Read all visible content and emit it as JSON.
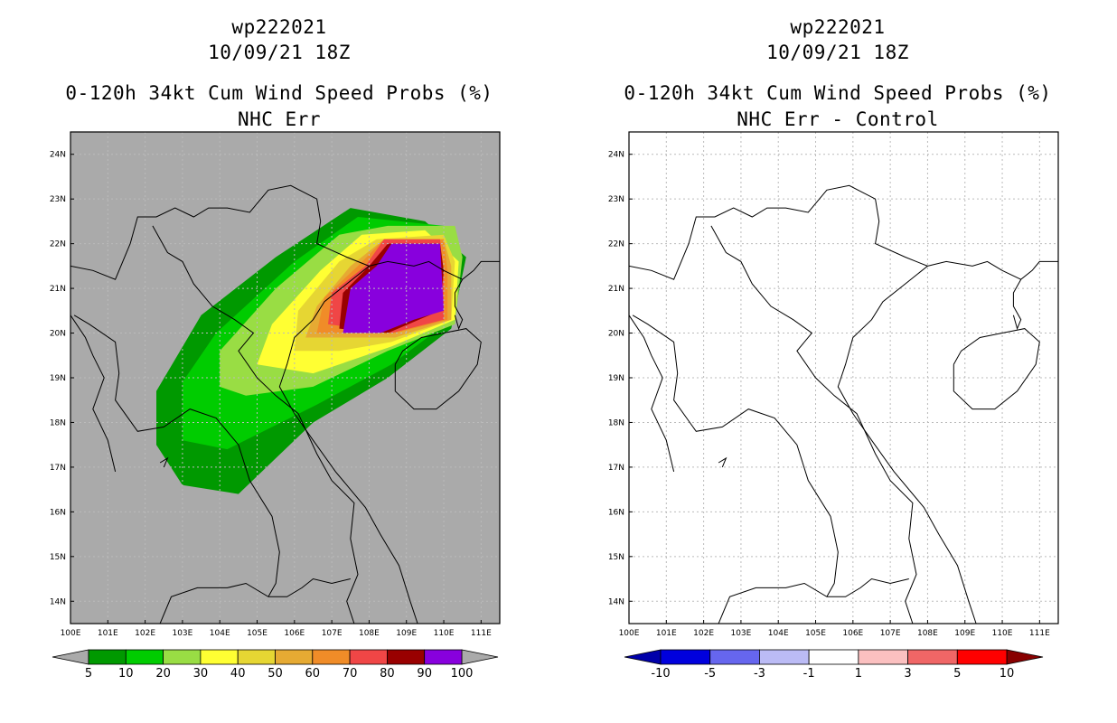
{
  "panels": [
    {
      "storm_id": "wp222021",
      "datetime": "10/09/21 18Z",
      "product": "0-120h 34kt Cum Wind Speed Probs (%)",
      "subtitle": "NHC Err",
      "colorbar": {
        "labels": [
          "5",
          "10",
          "20",
          "30",
          "40",
          "50",
          "60",
          "70",
          "80",
          "90",
          "100"
        ],
        "colors": [
          "#009900",
          "#00cc00",
          "#99dd44",
          "#ffff33",
          "#e6d633",
          "#e6aa33",
          "#f08c28",
          "#f04646",
          "#990000",
          "#8800dd"
        ],
        "under_color": "#aaaaaa",
        "over_color": "#aaaaaa"
      },
      "background": "#aaaaaa"
    },
    {
      "storm_id": "wp222021",
      "datetime": "10/09/21 18Z",
      "product": "0-120h 34kt Cum Wind Speed Probs (%)",
      "subtitle": "NHC Err - Control",
      "colorbar": {
        "labels": [
          "-10",
          "-5",
          "-3",
          "-1",
          "1",
          "3",
          "5",
          "10"
        ],
        "colors": [
          "#0000dd",
          "#6666ee",
          "#bbbbf5",
          "#ffffff",
          "#fbc0c0",
          "#f06666",
          "#ff0000"
        ],
        "under_color": "#0000aa",
        "over_color": "#880000"
      },
      "background": "#ffffff"
    }
  ],
  "chart_data": [
    {
      "type": "heatmap",
      "title": "0-120h 34kt Cum Wind Speed Probs (%) NHC Err",
      "xlabel": "",
      "ylabel": "",
      "xlim": [
        100,
        111.5
      ],
      "ylim": [
        13.5,
        24.5
      ],
      "x_ticks": [
        "100E",
        "101E",
        "102E",
        "103E",
        "104E",
        "105E",
        "106E",
        "107E",
        "108E",
        "109E",
        "110E",
        "111E"
      ],
      "y_ticks": [
        "14N",
        "15N",
        "16N",
        "17N",
        "18N",
        "19N",
        "20N",
        "21N",
        "22N",
        "23N",
        "24N"
      ],
      "grid": true,
      "levels": [
        5,
        10,
        20,
        30,
        40,
        50,
        60,
        70,
        80,
        90,
        100
      ],
      "probability_contours": [
        {
          "level": 5,
          "polygon": [
            [
              102.3,
              17.5
            ],
            [
              102.3,
              18.7
            ],
            [
              103.5,
              20.4
            ],
            [
              105.5,
              21.7
            ],
            [
              107.5,
              22.8
            ],
            [
              109.5,
              22.5
            ],
            [
              110.6,
              21.7
            ],
            [
              110.2,
              20.1
            ],
            [
              108.5,
              19.0
            ],
            [
              106.5,
              18.0
            ],
            [
              104.5,
              16.4
            ],
            [
              103.0,
              16.6
            ]
          ]
        },
        {
          "level": 10,
          "polygon": [
            [
              103.0,
              17.6
            ],
            [
              103.0,
              18.9
            ],
            [
              103.9,
              20.0
            ],
            [
              106.0,
              21.6
            ],
            [
              107.7,
              22.6
            ],
            [
              110.0,
              22.4
            ],
            [
              110.5,
              21.7
            ],
            [
              110.2,
              20.3
            ],
            [
              108.6,
              19.3
            ],
            [
              106.6,
              18.4
            ],
            [
              104.2,
              17.4
            ]
          ]
        },
        {
          "level": 20,
          "polygon": [
            [
              104.0,
              18.8
            ],
            [
              104.0,
              19.6
            ],
            [
              105.5,
              21.0
            ],
            [
              107.2,
              22.2
            ],
            [
              108.5,
              22.4
            ],
            [
              110.3,
              22.4
            ],
            [
              110.5,
              21.7
            ],
            [
              110.3,
              20.2
            ],
            [
              108.5,
              19.6
            ],
            [
              106.5,
              18.8
            ],
            [
              104.7,
              18.6
            ]
          ]
        },
        {
          "level": 30,
          "polygon": [
            [
              105.0,
              19.3
            ],
            [
              105.4,
              20.2
            ],
            [
              106.7,
              21.4
            ],
            [
              107.8,
              22.2
            ],
            [
              109.5,
              22.3
            ],
            [
              110.4,
              21.6
            ],
            [
              110.3,
              20.3
            ],
            [
              108.6,
              19.7
            ],
            [
              106.5,
              19.1
            ]
          ]
        },
        {
          "level": 40,
          "polygon": [
            [
              106.0,
              19.6
            ],
            [
              106.1,
              20.5
            ],
            [
              107.2,
              21.6
            ],
            [
              108.2,
              22.1
            ],
            [
              110.0,
              22.2
            ],
            [
              110.3,
              21.6
            ],
            [
              110.2,
              20.3
            ],
            [
              108.6,
              19.8
            ],
            [
              107.2,
              19.6
            ]
          ]
        },
        {
          "level": 50,
          "polygon": [
            [
              106.3,
              19.9
            ],
            [
              106.6,
              20.6
            ],
            [
              107.5,
              21.5
            ],
            [
              108.4,
              22.1
            ],
            [
              110.0,
              22.1
            ],
            [
              110.2,
              21.5
            ],
            [
              110.2,
              20.3
            ],
            [
              108.7,
              19.9
            ]
          ]
        },
        {
          "level": 60,
          "polygon": [
            [
              106.6,
              20.0
            ],
            [
              106.8,
              20.8
            ],
            [
              107.7,
              21.5
            ],
            [
              108.4,
              22.1
            ],
            [
              110.0,
              22.1
            ],
            [
              110.1,
              21.4
            ],
            [
              110.1,
              20.3
            ],
            [
              108.7,
              20.0
            ]
          ]
        },
        {
          "level": 70,
          "polygon": [
            [
              106.9,
              20.2
            ],
            [
              107.0,
              20.9
            ],
            [
              107.9,
              21.5
            ],
            [
              108.4,
              22.1
            ],
            [
              109.9,
              22.1
            ],
            [
              110.0,
              21.3
            ],
            [
              110.0,
              20.3
            ],
            [
              108.6,
              20.0
            ]
          ]
        },
        {
          "level": 80,
          "polygon": [
            [
              107.2,
              20.1
            ],
            [
              107.3,
              20.9
            ],
            [
              108.0,
              21.5
            ],
            [
              108.5,
              22.0
            ],
            [
              109.9,
              22.0
            ],
            [
              110.0,
              21.4
            ],
            [
              109.9,
              20.5
            ],
            [
              108.5,
              20.0
            ]
          ]
        },
        {
          "level": 90,
          "polygon": [
            [
              107.3,
              20.0
            ],
            [
              107.5,
              21.0
            ],
            [
              108.2,
              21.5
            ],
            [
              108.6,
              22.0
            ],
            [
              109.9,
              22.0
            ],
            [
              110.0,
              20.5
            ],
            [
              109.2,
              20.3
            ],
            [
              108.3,
              20.0
            ]
          ]
        }
      ]
    },
    {
      "type": "heatmap",
      "title": "0-120h 34kt Cum Wind Speed Probs (%) NHC Err - Control",
      "xlabel": "",
      "ylabel": "",
      "xlim": [
        100,
        111.5
      ],
      "ylim": [
        13.5,
        24.5
      ],
      "x_ticks": [
        "100E",
        "101E",
        "102E",
        "103E",
        "104E",
        "105E",
        "106E",
        "107E",
        "108E",
        "109E",
        "110E",
        "111E"
      ],
      "y_ticks": [
        "14N",
        "15N",
        "16N",
        "17N",
        "18N",
        "19N",
        "20N",
        "21N",
        "22N",
        "23N",
        "24N"
      ],
      "grid": true,
      "levels": [
        -10,
        -5,
        -3,
        -1,
        1,
        3,
        5,
        10
      ],
      "probability_contours": []
    }
  ]
}
